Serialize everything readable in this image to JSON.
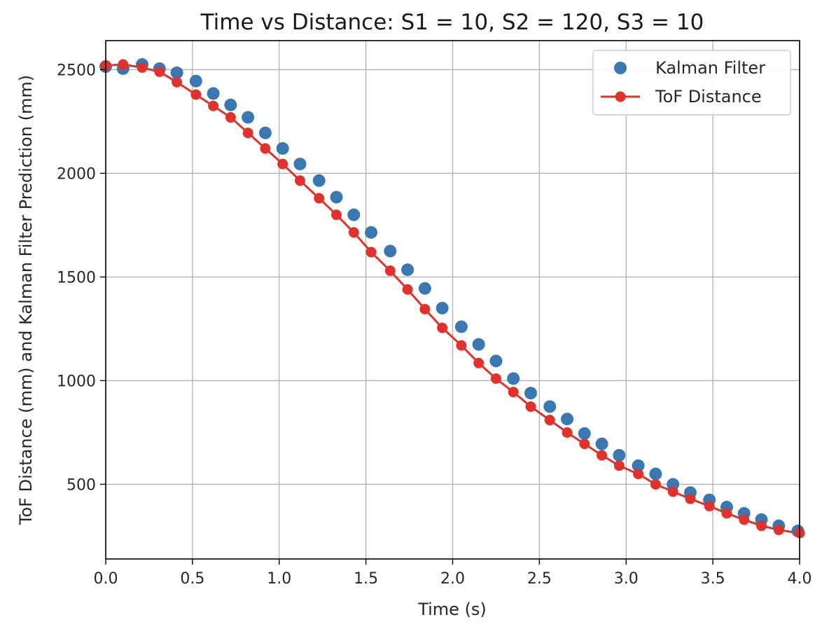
{
  "chart_data": {
    "type": "line",
    "title": "Time vs Distance: S1 = 10, S2 = 120, S3 = 10",
    "xlabel": "Time (s)",
    "ylabel": "ToF Distance (mm) and Kalman Filter Prediction (mm)",
    "xlim": [
      0.0,
      4.0
    ],
    "ylim": [
      140,
      2640
    ],
    "xticks": [
      0.0,
      0.5,
      1.0,
      1.5,
      2.0,
      2.5,
      3.0,
      3.5,
      4.0
    ],
    "xtick_labels": [
      "0.0",
      "0.5",
      "1.0",
      "1.5",
      "2.0",
      "2.5",
      "3.0",
      "3.5",
      "4.0"
    ],
    "yticks": [
      500,
      1000,
      1500,
      2000,
      2500
    ],
    "ytick_labels": [
      "500",
      "1000",
      "1500",
      "2000",
      "2500"
    ],
    "grid": true,
    "legend_position": "top-right",
    "series": [
      {
        "name": "Kalman Filter",
        "style": "markers",
        "color": "#3a78b4",
        "x": [
          0.0,
          0.1,
          0.21,
          0.31,
          0.41,
          0.52,
          0.62,
          0.72,
          0.82,
          0.92,
          1.02,
          1.12,
          1.23,
          1.33,
          1.43,
          1.53,
          1.64,
          1.74,
          1.84,
          1.94,
          2.05,
          2.15,
          2.25,
          2.35,
          2.45,
          2.56,
          2.66,
          2.76,
          2.86,
          2.96,
          3.07,
          3.17,
          3.27,
          3.37,
          3.48,
          3.58,
          3.68,
          3.78,
          3.88,
          3.99
        ],
        "y": [
          2515,
          2505,
          2525,
          2505,
          2485,
          2445,
          2385,
          2330,
          2270,
          2195,
          2120,
          2045,
          1965,
          1885,
          1800,
          1715,
          1625,
          1535,
          1445,
          1350,
          1260,
          1175,
          1095,
          1010,
          940,
          875,
          815,
          745,
          695,
          640,
          590,
          550,
          500,
          460,
          425,
          390,
          360,
          330,
          300,
          275
        ]
      },
      {
        "name": "ToF Distance",
        "style": "line+markers",
        "color": "#e0322b",
        "x": [
          0.0,
          0.1,
          0.21,
          0.31,
          0.41,
          0.52,
          0.62,
          0.72,
          0.82,
          0.92,
          1.02,
          1.12,
          1.23,
          1.33,
          1.43,
          1.53,
          1.64,
          1.74,
          1.84,
          1.94,
          2.05,
          2.15,
          2.25,
          2.35,
          2.45,
          2.56,
          2.66,
          2.76,
          2.86,
          2.96,
          3.07,
          3.17,
          3.27,
          3.37,
          3.48,
          3.58,
          3.68,
          3.78,
          3.88,
          4.0
        ],
        "y": [
          2520,
          2525,
          2510,
          2490,
          2440,
          2380,
          2325,
          2270,
          2195,
          2120,
          2045,
          1965,
          1880,
          1800,
          1715,
          1620,
          1530,
          1440,
          1345,
          1255,
          1170,
          1085,
          1010,
          945,
          875,
          810,
          750,
          695,
          640,
          590,
          550,
          500,
          465,
          430,
          395,
          360,
          330,
          300,
          280,
          265
        ]
      }
    ]
  }
}
